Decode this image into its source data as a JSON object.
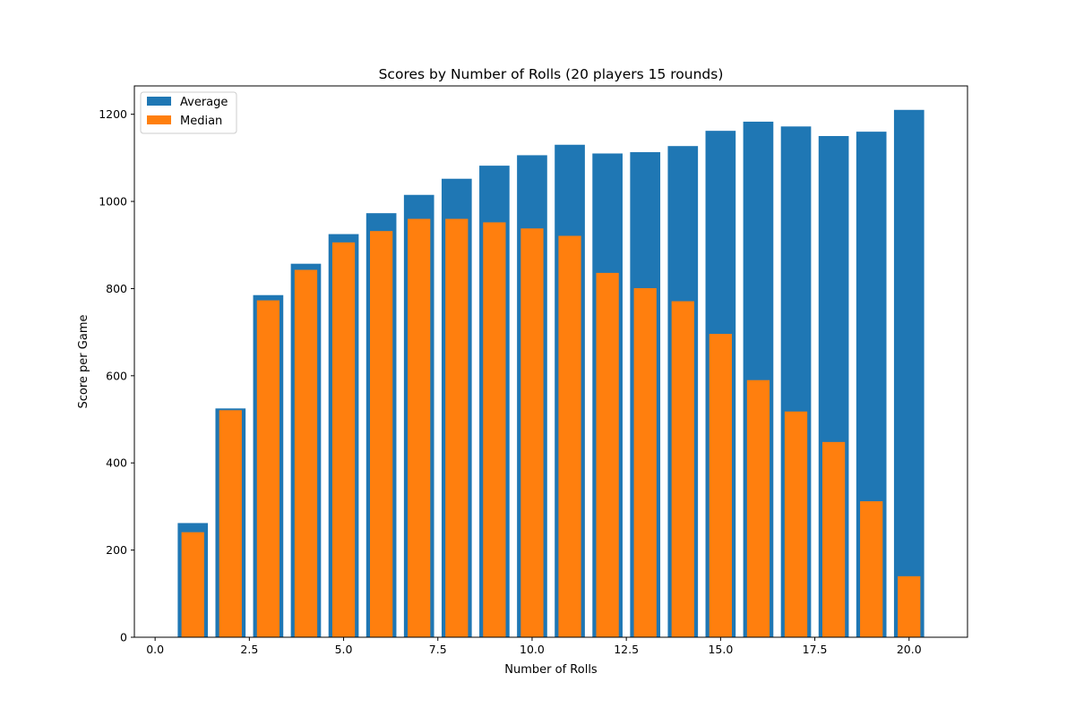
{
  "chart_data": {
    "type": "bar",
    "title": "Scores by Number of Rolls  (20 players 15 rounds)",
    "xlabel": "Number of Rolls",
    "ylabel": "Score per Game",
    "xlim": [
      -0.55,
      21.55
    ],
    "ylim": [
      0,
      1265
    ],
    "xticks": [
      0.0,
      2.5,
      5.0,
      7.5,
      10.0,
      12.5,
      15.0,
      17.5,
      20.0
    ],
    "xtick_labels": [
      "0.0",
      "2.5",
      "5.0",
      "7.5",
      "10.0",
      "12.5",
      "15.0",
      "17.5",
      "20.0"
    ],
    "yticks": [
      0,
      200,
      400,
      600,
      800,
      1000,
      1200
    ],
    "ytick_labels": [
      "0",
      "200",
      "400",
      "600",
      "800",
      "1000",
      "1200"
    ],
    "grid": false,
    "legend": "upper-left",
    "x": [
      1,
      2,
      3,
      4,
      5,
      6,
      7,
      8,
      9,
      10,
      11,
      12,
      13,
      14,
      15,
      16,
      17,
      18,
      19,
      20
    ],
    "series": [
      {
        "name": "Average",
        "color": "#1f77b4",
        "bar_width": 0.8,
        "values": [
          262,
          525,
          785,
          857,
          925,
          973,
          1015,
          1052,
          1082,
          1106,
          1130,
          1110,
          1113,
          1127,
          1162,
          1183,
          1172,
          1150,
          1160,
          1210
        ]
      },
      {
        "name": "Median",
        "color": "#ff7f0e",
        "bar_width": 0.6,
        "values": [
          241,
          521,
          773,
          843,
          906,
          932,
          960,
          960,
          952,
          938,
          921,
          836,
          801,
          771,
          696,
          590,
          518,
          448,
          312,
          140
        ]
      }
    ]
  }
}
